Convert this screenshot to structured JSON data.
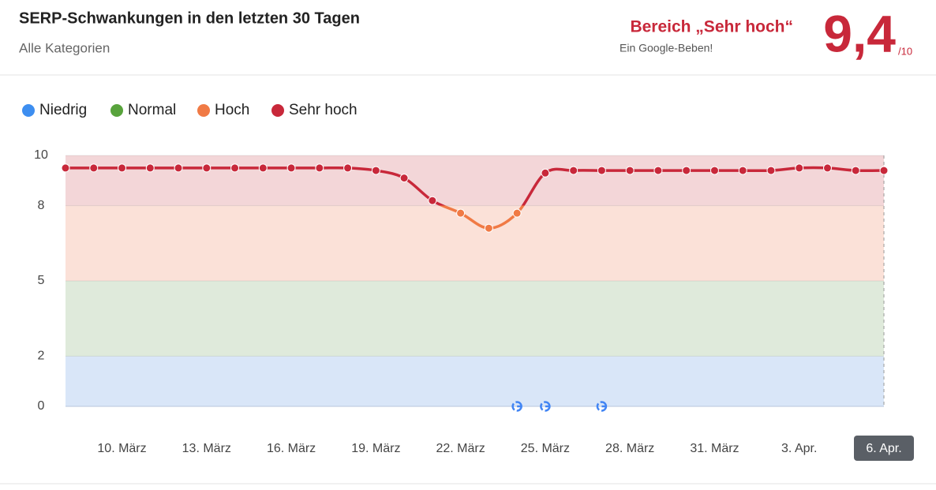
{
  "chart_data": {
    "type": "line",
    "title": "SERP-Schwankungen in den letzten 30 Tagen",
    "subtitle": "Alle Kategorien",
    "badge_title": "Bereich „Sehr hoch“",
    "badge_subtitle": "Ein Google-Beben!",
    "score": {
      "value": 9.4,
      "label": "9,4"
    },
    "score_suffix": "/10",
    "bands": [
      {
        "name": "Niedrig",
        "color": "#3d8ef0",
        "fill": "#d9e6f8",
        "from": 0,
        "to": 2
      },
      {
        "name": "Normal",
        "color": "#58a33c",
        "fill": "#dfeadb",
        "from": 2,
        "to": 5
      },
      {
        "name": "Hoch",
        "color": "#f07a45",
        "fill": "#fbe1d8",
        "from": 5,
        "to": 8
      },
      {
        "name": "Sehr hoch",
        "color": "#c8283a",
        "fill": "#f3d6d8",
        "from": 8,
        "to": 10
      }
    ],
    "categories": [
      null,
      null,
      "10. März",
      null,
      null,
      "13. März",
      null,
      null,
      "16. März",
      null,
      null,
      "19. März",
      null,
      null,
      "22. März",
      null,
      null,
      "25. März",
      null,
      null,
      "28. März",
      null,
      null,
      "31. März",
      null,
      null,
      "3. Apr.",
      null,
      null,
      "6. Apr."
    ],
    "values": [
      9.5,
      9.5,
      9.5,
      9.5,
      9.5,
      9.5,
      9.5,
      9.5,
      9.5,
      9.5,
      9.5,
      9.4,
      9.1,
      8.2,
      7.7,
      7.1,
      7.7,
      9.3,
      9.4,
      9.4,
      9.4,
      9.4,
      9.4,
      9.4,
      9.4,
      9.4,
      9.5,
      9.5,
      9.4,
      9.4
    ],
    "highlight_index": 29,
    "google_update_indices": [
      16,
      17,
      19
    ],
    "ylim": [
      0,
      10
    ],
    "yticks": [
      0,
      2,
      5,
      8,
      10
    ]
  }
}
